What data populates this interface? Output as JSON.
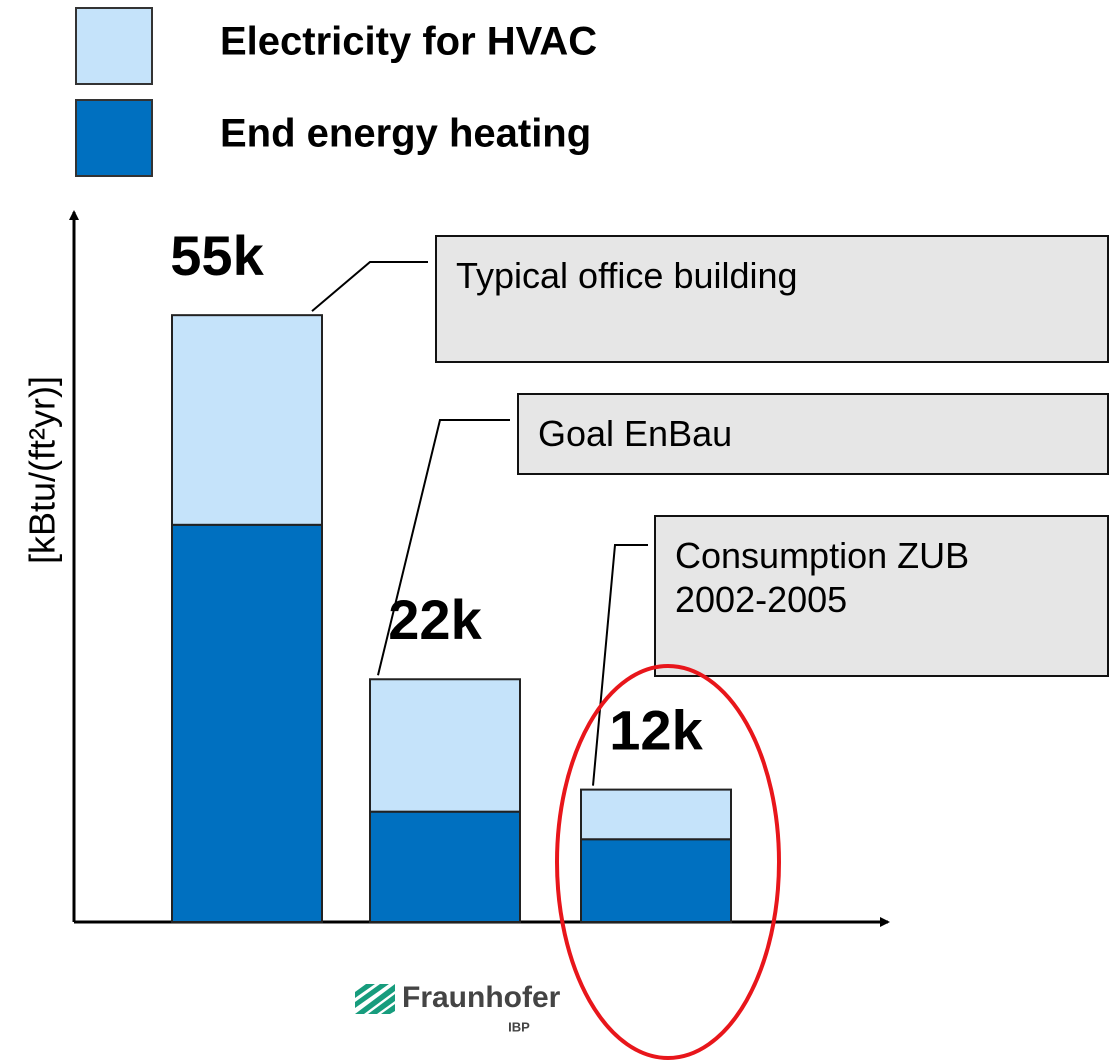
{
  "chart_data": {
    "type": "stacked-bar",
    "y_label": "[kBtu/(ft²yr)]",
    "categories": [
      null,
      null,
      null
    ],
    "series": [
      {
        "name": "End energy heating",
        "color": "#0070c0",
        "values": [
          36000,
          10000,
          7500
        ]
      },
      {
        "name": "Electricity for HVAC",
        "color": "#c5e3fa",
        "values": [
          19000,
          12000,
          4500
        ]
      }
    ],
    "legend_order": [
      1,
      0
    ],
    "totals": {
      "values": [
        55000,
        22000,
        12000
      ],
      "value_labels": [
        "55k",
        "22k",
        "12k"
      ]
    },
    "annotations": [
      "Typical office building",
      "Goal EnBau",
      "Consumption ZUB\n2002-2005"
    ],
    "highlight_color": "#e8161b",
    "ylim": [
      0,
      60000
    ],
    "logo": {
      "name": "Fraunhofer",
      "unit": "IBP"
    }
  }
}
